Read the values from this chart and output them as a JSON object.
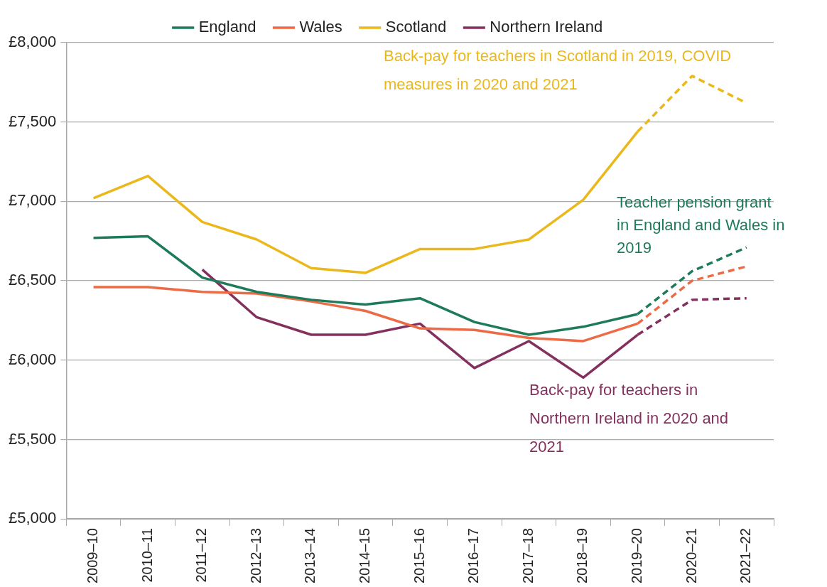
{
  "chart_data": {
    "type": "line",
    "categories": [
      "2009–10",
      "2010–11",
      "2011–12",
      "2012–13",
      "2013–14",
      "2014–15",
      "2015–16",
      "2016–17",
      "2017–18",
      "2018–19",
      "2019–20",
      "2020–21",
      "2021–22"
    ],
    "series": [
      {
        "name": "England",
        "color": "#1e7b5a",
        "line_style": "solid",
        "values": [
          6770,
          6780,
          6520,
          6430,
          6380,
          6350,
          6390,
          6240,
          6160,
          6210,
          6290,
          null,
          null
        ]
      },
      {
        "name": "Wales",
        "color": "#ec6a45",
        "line_style": "solid",
        "values": [
          6460,
          6460,
          6430,
          6420,
          6370,
          6310,
          6200,
          6190,
          6140,
          6120,
          6230,
          null,
          null
        ]
      },
      {
        "name": "Scotland",
        "color": "#ebb81c",
        "line_style": "solid",
        "values": [
          7020,
          7160,
          6870,
          6760,
          6580,
          6550,
          6700,
          6700,
          6760,
          7010,
          7440,
          null,
          null
        ]
      },
      {
        "name": "Northern Ireland",
        "color": "#84305e",
        "line_style": "solid",
        "values": [
          null,
          null,
          6570,
          6270,
          6160,
          6160,
          6230,
          5950,
          6120,
          5890,
          6160,
          null,
          null
        ]
      },
      {
        "color": "#1e7b5a",
        "line_style": "dashed",
        "values": [
          null,
          null,
          null,
          null,
          null,
          null,
          null,
          null,
          null,
          null,
          6290,
          6560,
          6710
        ]
      },
      {
        "color": "#ec6a45",
        "line_style": "dashed",
        "values": [
          null,
          null,
          null,
          null,
          null,
          null,
          null,
          null,
          null,
          null,
          6230,
          6500,
          6590
        ]
      },
      {
        "color": "#ebb81c",
        "line_style": "dashed",
        "values": [
          null,
          null,
          null,
          null,
          null,
          null,
          null,
          null,
          null,
          null,
          7440,
          7790,
          7620
        ]
      },
      {
        "color": "#84305e",
        "line_style": "dashed",
        "values": [
          null,
          null,
          null,
          null,
          null,
          null,
          null,
          null,
          null,
          null,
          6160,
          6380,
          6390
        ]
      }
    ],
    "ylim": [
      5000,
      8000
    ],
    "yticks": [
      {
        "value": 5000,
        "label": "£5,000"
      },
      {
        "value": 5500,
        "label": "£5,500"
      },
      {
        "value": 6000,
        "label": "£6,000"
      },
      {
        "value": 6500,
        "label": "£6,500"
      },
      {
        "value": 7000,
        "label": "£7,000"
      },
      {
        "value": 7500,
        "label": "£7,500"
      },
      {
        "value": 8000,
        "label": "£8,000"
      }
    ],
    "grid": "y",
    "legend": "top",
    "marker": "none",
    "annotations": [
      "Back-pay for teachers in Scotland in 2019, COVID measures in 2020 and 2021",
      "Teacher pension grant in England and Wales in 2019",
      "Back-pay for teachers in Northern Ireland in 2020 and 2021"
    ]
  }
}
